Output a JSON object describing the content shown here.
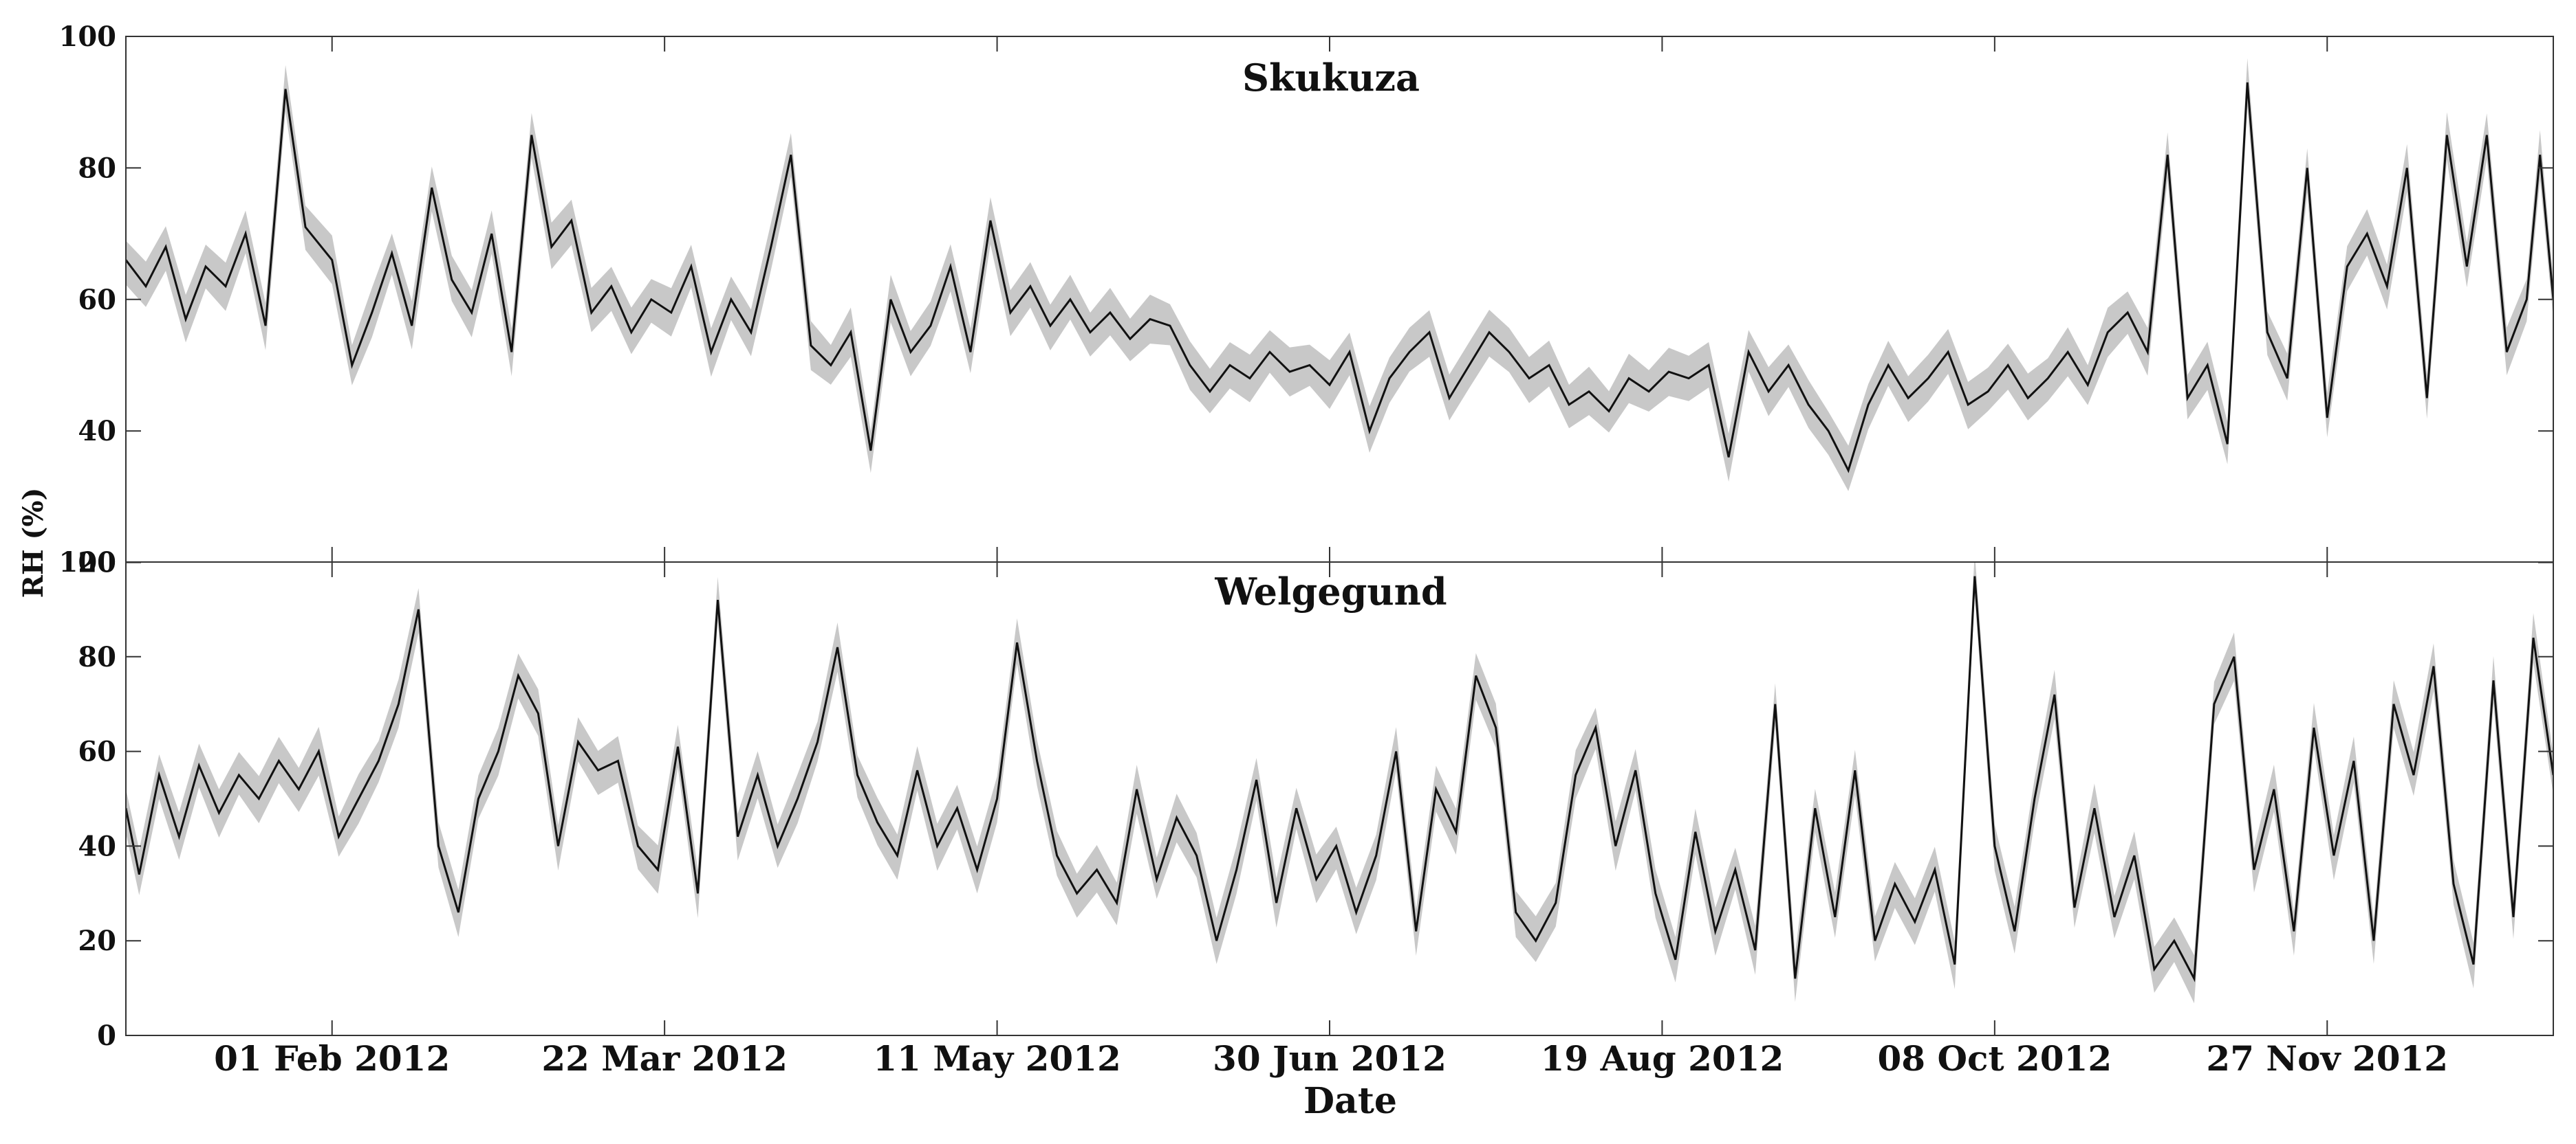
{
  "chart_data": {
    "type": "line",
    "xlabel": "Date",
    "ylabel": "RH (%)",
    "xlim": [
      "2012-01-01",
      "2012-12-31"
    ],
    "ylim": [
      0,
      100
    ],
    "x_ticks": [
      {
        "date": "2012-02-01",
        "label": "01 Feb 2012"
      },
      {
        "date": "2012-03-22",
        "label": "22 Mar 2012"
      },
      {
        "date": "2012-05-11",
        "label": "11 May 2012"
      },
      {
        "date": "2012-06-30",
        "label": "30 Jun 2012"
      },
      {
        "date": "2012-08-19",
        "label": "19 Aug 2012"
      },
      {
        "date": "2012-10-08",
        "label": "08 Oct 2012"
      },
      {
        "date": "2012-11-27",
        "label": "27 Nov 2012"
      }
    ],
    "panels": [
      {
        "title": "Skukuza",
        "yticks": [
          "20",
          "40",
          "60",
          "80",
          "100"
        ],
        "series_points": [
          [
            "2012-01-01",
            66
          ],
          [
            "2012-01-04",
            62
          ],
          [
            "2012-01-07",
            68
          ],
          [
            "2012-01-10",
            57
          ],
          [
            "2012-01-13",
            65
          ],
          [
            "2012-01-16",
            62
          ],
          [
            "2012-01-19",
            70
          ],
          [
            "2012-01-22",
            56
          ],
          [
            "2012-01-25",
            92
          ],
          [
            "2012-01-28",
            71
          ],
          [
            "2012-02-01",
            66
          ],
          [
            "2012-02-04",
            50
          ],
          [
            "2012-02-07",
            58
          ],
          [
            "2012-02-10",
            67
          ],
          [
            "2012-02-13",
            56
          ],
          [
            "2012-02-16",
            77
          ],
          [
            "2012-02-19",
            63
          ],
          [
            "2012-02-22",
            58
          ],
          [
            "2012-02-25",
            70
          ],
          [
            "2012-02-28",
            52
          ],
          [
            "2012-03-02",
            85
          ],
          [
            "2012-03-05",
            68
          ],
          [
            "2012-03-08",
            72
          ],
          [
            "2012-03-11",
            58
          ],
          [
            "2012-03-14",
            62
          ],
          [
            "2012-03-17",
            55
          ],
          [
            "2012-03-20",
            60
          ],
          [
            "2012-03-23",
            58
          ],
          [
            "2012-03-26",
            65
          ],
          [
            "2012-03-29",
            52
          ],
          [
            "2012-04-01",
            60
          ],
          [
            "2012-04-04",
            55
          ],
          [
            "2012-04-07",
            68
          ],
          [
            "2012-04-10",
            82
          ],
          [
            "2012-04-13",
            53
          ],
          [
            "2012-04-16",
            50
          ],
          [
            "2012-04-19",
            55
          ],
          [
            "2012-04-22",
            37
          ],
          [
            "2012-04-25",
            60
          ],
          [
            "2012-04-28",
            52
          ],
          [
            "2012-05-01",
            56
          ],
          [
            "2012-05-04",
            65
          ],
          [
            "2012-05-07",
            52
          ],
          [
            "2012-05-10",
            72
          ],
          [
            "2012-05-13",
            58
          ],
          [
            "2012-05-16",
            62
          ],
          [
            "2012-05-19",
            56
          ],
          [
            "2012-05-22",
            60
          ],
          [
            "2012-05-25",
            55
          ],
          [
            "2012-05-28",
            58
          ],
          [
            "2012-05-31",
            54
          ],
          [
            "2012-06-03",
            57
          ],
          [
            "2012-06-06",
            56
          ],
          [
            "2012-06-09",
            50
          ],
          [
            "2012-06-12",
            46
          ],
          [
            "2012-06-15",
            50
          ],
          [
            "2012-06-18",
            48
          ],
          [
            "2012-06-21",
            52
          ],
          [
            "2012-06-24",
            49
          ],
          [
            "2012-06-27",
            50
          ],
          [
            "2012-06-30",
            47
          ],
          [
            "2012-07-03",
            52
          ],
          [
            "2012-07-06",
            40
          ],
          [
            "2012-07-09",
            48
          ],
          [
            "2012-07-12",
            52
          ],
          [
            "2012-07-15",
            55
          ],
          [
            "2012-07-18",
            45
          ],
          [
            "2012-07-21",
            50
          ],
          [
            "2012-07-24",
            55
          ],
          [
            "2012-07-27",
            52
          ],
          [
            "2012-07-30",
            48
          ],
          [
            "2012-08-02",
            50
          ],
          [
            "2012-08-05",
            44
          ],
          [
            "2012-08-08",
            46
          ],
          [
            "2012-08-11",
            43
          ],
          [
            "2012-08-14",
            48
          ],
          [
            "2012-08-17",
            46
          ],
          [
            "2012-08-20",
            49
          ],
          [
            "2012-08-23",
            48
          ],
          [
            "2012-08-26",
            50
          ],
          [
            "2012-08-29",
            36
          ],
          [
            "2012-09-01",
            52
          ],
          [
            "2012-09-04",
            46
          ],
          [
            "2012-09-07",
            50
          ],
          [
            "2012-09-10",
            44
          ],
          [
            "2012-09-13",
            40
          ],
          [
            "2012-09-16",
            34
          ],
          [
            "2012-09-19",
            44
          ],
          [
            "2012-09-22",
            50
          ],
          [
            "2012-09-25",
            45
          ],
          [
            "2012-09-28",
            48
          ],
          [
            "2012-10-01",
            52
          ],
          [
            "2012-10-04",
            44
          ],
          [
            "2012-10-07",
            46
          ],
          [
            "2012-10-10",
            50
          ],
          [
            "2012-10-13",
            45
          ],
          [
            "2012-10-16",
            48
          ],
          [
            "2012-10-19",
            52
          ],
          [
            "2012-10-22",
            47
          ],
          [
            "2012-10-25",
            55
          ],
          [
            "2012-10-28",
            58
          ],
          [
            "2012-10-31",
            52
          ],
          [
            "2012-11-03",
            82
          ],
          [
            "2012-11-06",
            45
          ],
          [
            "2012-11-09",
            50
          ],
          [
            "2012-11-12",
            38
          ],
          [
            "2012-11-15",
            93
          ],
          [
            "2012-11-18",
            55
          ],
          [
            "2012-11-21",
            48
          ],
          [
            "2012-11-24",
            80
          ],
          [
            "2012-11-27",
            42
          ],
          [
            "2012-11-30",
            65
          ],
          [
            "2012-12-03",
            70
          ],
          [
            "2012-12-06",
            62
          ],
          [
            "2012-12-09",
            80
          ],
          [
            "2012-12-12",
            45
          ],
          [
            "2012-12-15",
            85
          ],
          [
            "2012-12-18",
            65
          ],
          [
            "2012-12-21",
            85
          ],
          [
            "2012-12-24",
            52
          ],
          [
            "2012-12-27",
            60
          ],
          [
            "2012-12-29",
            82
          ],
          [
            "2012-12-31",
            60
          ]
        ]
      },
      {
        "title": "Welgegund",
        "yticks": [
          "0",
          "20",
          "40",
          "60",
          "80",
          "100"
        ],
        "series_points": [
          [
            "2012-01-01",
            48
          ],
          [
            "2012-01-03",
            34
          ],
          [
            "2012-01-06",
            55
          ],
          [
            "2012-01-09",
            42
          ],
          [
            "2012-01-12",
            57
          ],
          [
            "2012-01-15",
            47
          ],
          [
            "2012-01-18",
            55
          ],
          [
            "2012-01-21",
            50
          ],
          [
            "2012-01-24",
            58
          ],
          [
            "2012-01-27",
            52
          ],
          [
            "2012-01-30",
            60
          ],
          [
            "2012-02-02",
            42
          ],
          [
            "2012-02-05",
            50
          ],
          [
            "2012-02-08",
            58
          ],
          [
            "2012-02-11",
            70
          ],
          [
            "2012-02-14",
            90
          ],
          [
            "2012-02-17",
            40
          ],
          [
            "2012-02-20",
            26
          ],
          [
            "2012-02-23",
            50
          ],
          [
            "2012-02-26",
            60
          ],
          [
            "2012-02-29",
            76
          ],
          [
            "2012-03-03",
            68
          ],
          [
            "2012-03-06",
            40
          ],
          [
            "2012-03-09",
            62
          ],
          [
            "2012-03-12",
            56
          ],
          [
            "2012-03-15",
            58
          ],
          [
            "2012-03-18",
            40
          ],
          [
            "2012-03-21",
            35
          ],
          [
            "2012-03-24",
            61
          ],
          [
            "2012-03-27",
            30
          ],
          [
            "2012-03-30",
            92
          ],
          [
            "2012-04-02",
            42
          ],
          [
            "2012-04-05",
            55
          ],
          [
            "2012-04-08",
            40
          ],
          [
            "2012-04-11",
            50
          ],
          [
            "2012-04-14",
            62
          ],
          [
            "2012-04-17",
            82
          ],
          [
            "2012-04-20",
            55
          ],
          [
            "2012-04-23",
            45
          ],
          [
            "2012-04-26",
            38
          ],
          [
            "2012-04-29",
            56
          ],
          [
            "2012-05-02",
            40
          ],
          [
            "2012-05-05",
            48
          ],
          [
            "2012-05-08",
            35
          ],
          [
            "2012-05-11",
            50
          ],
          [
            "2012-05-14",
            83
          ],
          [
            "2012-05-17",
            58
          ],
          [
            "2012-05-20",
            38
          ],
          [
            "2012-05-23",
            30
          ],
          [
            "2012-05-26",
            35
          ],
          [
            "2012-05-29",
            28
          ],
          [
            "2012-06-01",
            52
          ],
          [
            "2012-06-04",
            33
          ],
          [
            "2012-06-07",
            46
          ],
          [
            "2012-06-10",
            38
          ],
          [
            "2012-06-13",
            20
          ],
          [
            "2012-06-16",
            35
          ],
          [
            "2012-06-19",
            54
          ],
          [
            "2012-06-22",
            28
          ],
          [
            "2012-06-25",
            48
          ],
          [
            "2012-06-28",
            33
          ],
          [
            "2012-07-01",
            40
          ],
          [
            "2012-07-04",
            26
          ],
          [
            "2012-07-07",
            38
          ],
          [
            "2012-07-10",
            60
          ],
          [
            "2012-07-13",
            22
          ],
          [
            "2012-07-16",
            52
          ],
          [
            "2012-07-19",
            43
          ],
          [
            "2012-07-22",
            76
          ],
          [
            "2012-07-25",
            65
          ],
          [
            "2012-07-28",
            26
          ],
          [
            "2012-07-31",
            20
          ],
          [
            "2012-08-03",
            28
          ],
          [
            "2012-08-06",
            55
          ],
          [
            "2012-08-09",
            65
          ],
          [
            "2012-08-12",
            40
          ],
          [
            "2012-08-15",
            56
          ],
          [
            "2012-08-18",
            30
          ],
          [
            "2012-08-21",
            16
          ],
          [
            "2012-08-24",
            43
          ],
          [
            "2012-08-27",
            22
          ],
          [
            "2012-08-30",
            35
          ],
          [
            "2012-09-02",
            18
          ],
          [
            "2012-09-05",
            70
          ],
          [
            "2012-09-08",
            12
          ],
          [
            "2012-09-11",
            48
          ],
          [
            "2012-09-14",
            25
          ],
          [
            "2012-09-17",
            56
          ],
          [
            "2012-09-20",
            20
          ],
          [
            "2012-09-23",
            32
          ],
          [
            "2012-09-26",
            24
          ],
          [
            "2012-09-29",
            35
          ],
          [
            "2012-10-02",
            15
          ],
          [
            "2012-10-05",
            97
          ],
          [
            "2012-10-08",
            40
          ],
          [
            "2012-10-11",
            22
          ],
          [
            "2012-10-14",
            50
          ],
          [
            "2012-10-17",
            72
          ],
          [
            "2012-10-20",
            27
          ],
          [
            "2012-10-23",
            48
          ],
          [
            "2012-10-26",
            25
          ],
          [
            "2012-10-29",
            38
          ],
          [
            "2012-11-01",
            14
          ],
          [
            "2012-11-04",
            20
          ],
          [
            "2012-11-07",
            12
          ],
          [
            "2012-11-10",
            70
          ],
          [
            "2012-11-13",
            80
          ],
          [
            "2012-11-16",
            35
          ],
          [
            "2012-11-19",
            52
          ],
          [
            "2012-11-22",
            22
          ],
          [
            "2012-11-25",
            65
          ],
          [
            "2012-11-28",
            38
          ],
          [
            "2012-12-01",
            58
          ],
          [
            "2012-12-04",
            20
          ],
          [
            "2012-12-07",
            70
          ],
          [
            "2012-12-10",
            55
          ],
          [
            "2012-12-13",
            78
          ],
          [
            "2012-12-16",
            32
          ],
          [
            "2012-12-19",
            15
          ],
          [
            "2012-12-22",
            75
          ],
          [
            "2012-12-25",
            25
          ],
          [
            "2012-12-28",
            84
          ],
          [
            "2012-12-31",
            55
          ]
        ]
      }
    ]
  }
}
